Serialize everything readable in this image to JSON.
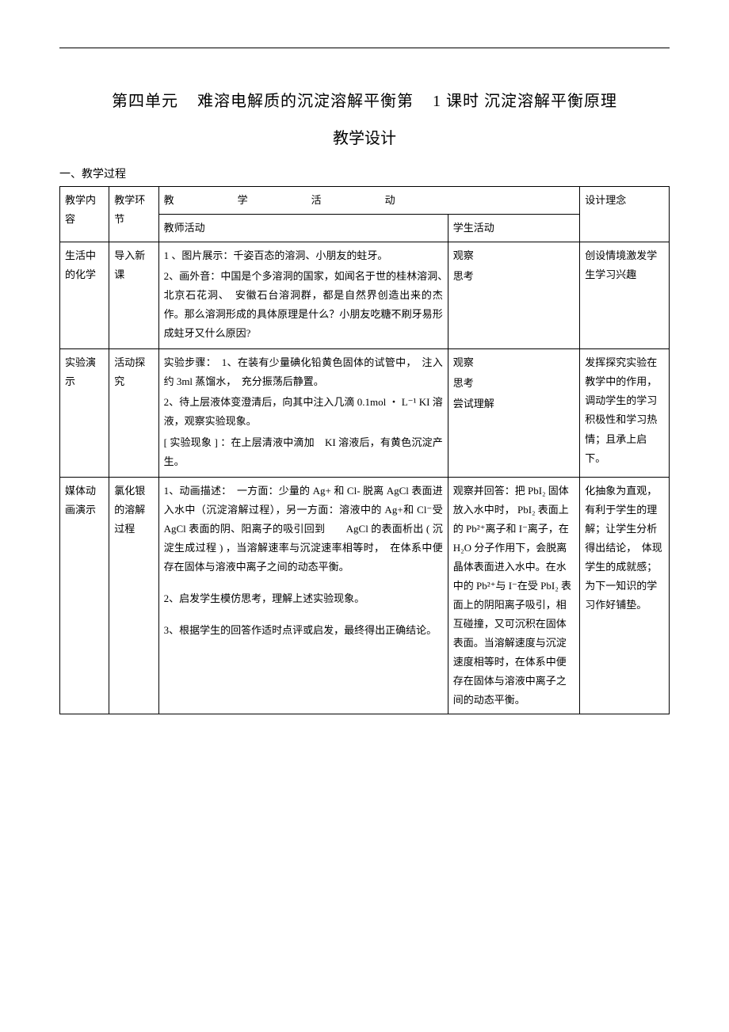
{
  "title": {
    "part1": "第四单元",
    "part2": "难溶电解质的沉淀溶解平衡第",
    "part3": "1 课时",
    "part4": "沉淀溶解平衡原理"
  },
  "subtitle": "教学设计",
  "section_header": "一、教学过程",
  "header": {
    "col1": "教学内容",
    "col2": "教学环节",
    "activity": "教　　学　　活　　动",
    "teacher": "教师活动",
    "student": "学生活动",
    "col5": "设计理念"
  },
  "rows": [
    {
      "content": "生活中的化学",
      "phase": "导入新课",
      "teacher": "1 、图片展示：千姿百态的溶洞、小朋友的蛀牙。\n2、画外音：中国是个多溶洞的国家，如闻名于世的桂林溶洞、　北京石花洞、　安徽石台溶洞群，都是自然界创造出来的杰作。那么溶洞形成的具体原理是什么？小朋友吃糖不刷牙易形成蛀牙又什么原因?",
      "student": "观察\n思考",
      "rationale": "创设情境激发学生学习兴趣"
    },
    {
      "content": "实验演示",
      "phase": "活动探究",
      "teacher": "实验步骤：　1、在装有少量碘化铅黄色固体的试管中，　注入约 3ml 蒸馏水，　充分振荡后静置。\n2、待上层液体变澄清后，向其中注入几滴 0.1mol ・ L⁻¹ KI 溶液，观察实验现象。\n[ 实验现象 ] ：在上层清液中滴加　KI 溶液后，有黄色沉淀产生。",
      "student": "观察\n思考\n尝试理解",
      "rationale": "发挥探究实验在教学中的作用，调动学生的学习积极性和学习热情；且承上启下。"
    },
    {
      "content": "媒体动画演示",
      "phase": "氯化银的溶解过程",
      "teacher": "1、动画描述：　一方面：少量的 Ag+ 和 Cl- 脱离 AgCl 表面进入水中（沉淀溶解过程），另一方面：溶液中的 Ag+和 Cl⁻受 AgCl 表面的阴、阳离子的吸引回到　　AgCl 的表面析出 ( 沉淀生成过程 ) ，当溶解速率与沉淀速率相等时，　在体系中便存在固体与溶液中离子之间的动态平衡。\n\n2、启发学生模仿思考，理解上述实验现象。\n\n3、根据学生的回答作适时点评或启发，最终得出正确结论。",
      "student": "观察并回答：把 PbI₂ 固体放入水中时， PbI₂ 表面上的 Pb²⁺离子和 I⁻离子，在 H₂O 分子作用下，会脱离晶体表面进入水中。在水中的 Pb²⁺与 I⁻在受 PbI₂ 表面上的阴阳离子吸引，相互碰撞，又可沉积在固体表面。当溶解速度与沉淀速度相等时，在体系中便存在固体与溶液中离子之间的动态平衡。",
      "rationale": "化抽象为直观，有利于学生的理解；让学生分析得出结论，　体现学生的成就感；　为下一知识的学习作好铺垫。"
    }
  ],
  "colors": {
    "text": "#000000",
    "background": "#ffffff",
    "border": "#000000"
  }
}
